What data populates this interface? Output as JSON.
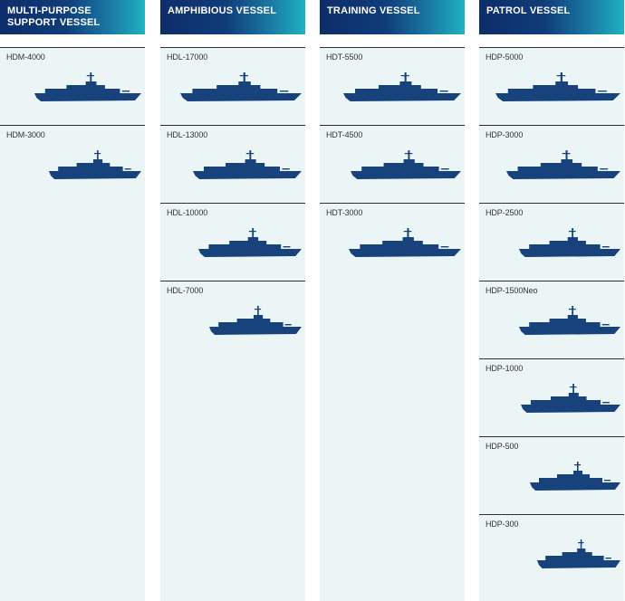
{
  "columns": [
    {
      "heading_line1": "MULTI-PURPOSE",
      "heading_line2": "SUPPORT VESSEL",
      "vessels": [
        {
          "name": "HDM-4000",
          "icon": "ship-silhouette-icon"
        },
        {
          "name": "HDM-3000",
          "icon": "ship-silhouette-icon"
        }
      ]
    },
    {
      "heading_line1": "AMPHIBIOUS VESSEL",
      "heading_line2": "",
      "vessels": [
        {
          "name": "HDL-17000",
          "icon": "ship-silhouette-icon"
        },
        {
          "name": "HDL-13000",
          "icon": "ship-silhouette-icon"
        },
        {
          "name": "HDL-10000",
          "icon": "ship-silhouette-icon"
        },
        {
          "name": "HDL-7000",
          "icon": "ship-silhouette-icon"
        }
      ]
    },
    {
      "heading_line1": "TRAINING VESSEL",
      "heading_line2": "",
      "vessels": [
        {
          "name": "HDT-5500",
          "icon": "ship-silhouette-icon"
        },
        {
          "name": "HDT-4500",
          "icon": "ship-silhouette-icon"
        },
        {
          "name": "HDT-3000",
          "icon": "ship-silhouette-icon"
        }
      ]
    },
    {
      "heading_line1": "PATROL VESSEL",
      "heading_line2": "",
      "vessels": [
        {
          "name": "HDP-5000",
          "icon": "ship-silhouette-icon"
        },
        {
          "name": "HDP-3000",
          "icon": "ship-silhouette-icon"
        },
        {
          "name": "HDP-2500",
          "icon": "ship-silhouette-icon"
        },
        {
          "name": "HDP-1500Neo",
          "icon": "ship-silhouette-icon"
        },
        {
          "name": "HDP-1000",
          "icon": "ship-silhouette-icon"
        },
        {
          "name": "HDP-500",
          "icon": "ship-silhouette-icon"
        },
        {
          "name": "HDP-300",
          "icon": "ship-silhouette-icon"
        }
      ]
    }
  ],
  "colors": {
    "header_gradient_start": "#0d2d6a",
    "header_gradient_end": "#1fb2c2",
    "column_background": "#ecf5f5",
    "ship_fill": "#17427c"
  }
}
